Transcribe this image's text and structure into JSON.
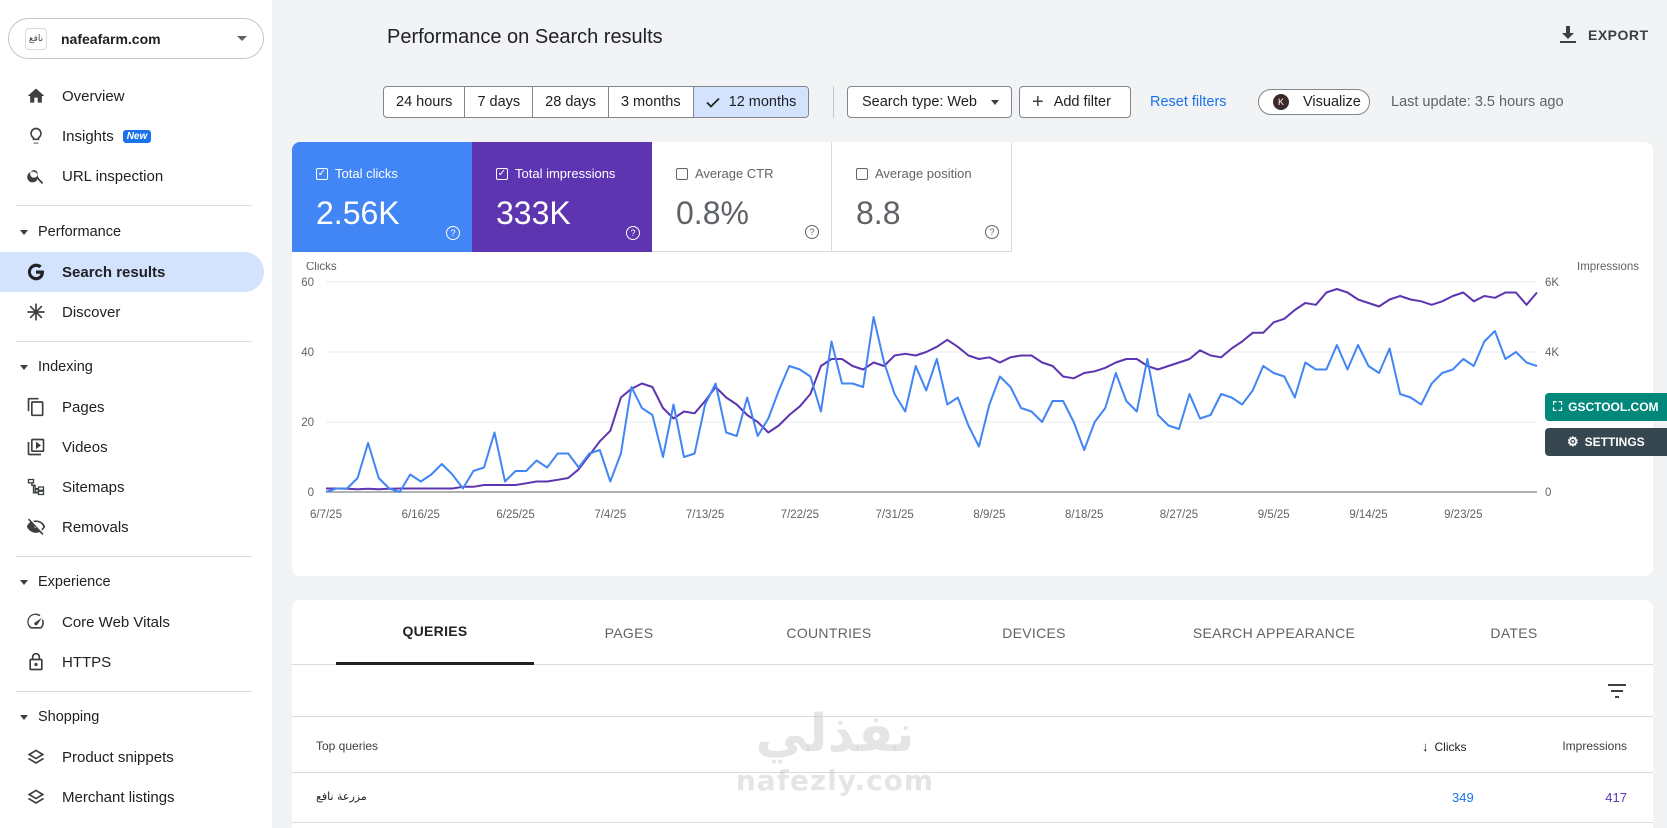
{
  "property": {
    "logo_text": "نافع",
    "name": "nafeafarm.com"
  },
  "sidebar": {
    "top_items": [
      {
        "label": "Overview",
        "icon": "home-icon"
      },
      {
        "label": "Insights",
        "icon": "lightbulb-icon",
        "badge": "New"
      },
      {
        "label": "URL inspection",
        "icon": "search-icon"
      }
    ],
    "sections": [
      {
        "title": "Performance",
        "items": [
          {
            "label": "Search results",
            "icon": "google-g-icon",
            "active": true
          },
          {
            "label": "Discover",
            "icon": "asterisk-icon"
          }
        ]
      },
      {
        "title": "Indexing",
        "items": [
          {
            "label": "Pages",
            "icon": "pages-icon"
          },
          {
            "label": "Videos",
            "icon": "video-icon"
          },
          {
            "label": "Sitemaps",
            "icon": "sitemap-icon"
          },
          {
            "label": "Removals",
            "icon": "eye-off-icon"
          }
        ]
      },
      {
        "title": "Experience",
        "items": [
          {
            "label": "Core Web Vitals",
            "icon": "gauge-icon"
          },
          {
            "label": "HTTPS",
            "icon": "lock-icon"
          }
        ]
      },
      {
        "title": "Shopping",
        "items": [
          {
            "label": "Product snippets",
            "icon": "layers-icon"
          },
          {
            "label": "Merchant listings",
            "icon": "layers-icon"
          }
        ]
      }
    ]
  },
  "header": {
    "title": "Performance on Search results",
    "export_label": "EXPORT"
  },
  "toolbar": {
    "ranges": [
      "24 hours",
      "7 days",
      "28 days",
      "3 months",
      "12 months"
    ],
    "selected_range": "12 months",
    "search_type": "Search type: Web",
    "add_filter": "Add filter",
    "reset": "Reset filters",
    "visualize": "Visualize",
    "visualize_logo": "K",
    "last_update": "Last update: 3.5 hours ago"
  },
  "metrics": {
    "clicks": {
      "label": "Total clicks",
      "value": "2.56K",
      "checked": true
    },
    "impressions": {
      "label": "Total impressions",
      "value": "333K",
      "checked": true
    },
    "ctr": {
      "label": "Average CTR",
      "value": "0.8%",
      "checked": false
    },
    "position": {
      "label": "Average position",
      "value": "8.8",
      "checked": false
    }
  },
  "floating": {
    "gsctool": "GSCTOOL.COM",
    "settings": "SETTINGS"
  },
  "chart_data": {
    "type": "line",
    "ylabel_left": "Clicks",
    "ylabel_right": "Impressions",
    "y_left_ticks": [
      "60",
      "40",
      "20",
      "0"
    ],
    "y_right_ticks": [
      "6K",
      "4K",
      "0"
    ],
    "ylim_left": [
      0,
      60
    ],
    "ylim_right": [
      0,
      6000
    ],
    "x_ticks": [
      "6/7/25",
      "6/16/25",
      "6/25/25",
      "7/4/25",
      "7/13/25",
      "7/22/25",
      "7/31/25",
      "8/9/25",
      "8/18/25",
      "8/27/25",
      "9/5/25",
      "9/14/25",
      "9/23/25"
    ],
    "series": [
      {
        "name": "Clicks",
        "color": "#4285f4",
        "axis": "left",
        "values": [
          0,
          1,
          1,
          4,
          14,
          4,
          1,
          0,
          5,
          3,
          5,
          8,
          5,
          1,
          6,
          7,
          17,
          3,
          6,
          6,
          9,
          7,
          11,
          11,
          7,
          11,
          12,
          3,
          11,
          30,
          24,
          22,
          10,
          25,
          10,
          11,
          25,
          31,
          17,
          16,
          27,
          16,
          21,
          29,
          36,
          35,
          33,
          23,
          43,
          31,
          31,
          30,
          50,
          37,
          28,
          23,
          36,
          29,
          38,
          25,
          27,
          19,
          13,
          25,
          33,
          30,
          24,
          23,
          20,
          26,
          26,
          20,
          12,
          20,
          24,
          34,
          26,
          23,
          38,
          22,
          19,
          18,
          28,
          21,
          22,
          28,
          27,
          25,
          29,
          36,
          34,
          33,
          27,
          37,
          35,
          35,
          42,
          35,
          42,
          36,
          34,
          41,
          28,
          27,
          25,
          31,
          34,
          35,
          38,
          36,
          43,
          46,
          38,
          40,
          37,
          36
        ]
      },
      {
        "name": "Impressions",
        "color": "#5e35b1",
        "axis": "right",
        "values": [
          100,
          100,
          90,
          80,
          90,
          80,
          90,
          100,
          100,
          100,
          100,
          100,
          100,
          150,
          150,
          200,
          200,
          200,
          200,
          250,
          300,
          300,
          350,
          400,
          650,
          1050,
          1450,
          1750,
          2700,
          2950,
          3100,
          3000,
          2400,
          2100,
          2300,
          2250,
          2600,
          3000,
          2700,
          2500,
          2200,
          2000,
          1700,
          1900,
          2200,
          2450,
          2800,
          3600,
          3800,
          3800,
          3600,
          3500,
          3700,
          3600,
          3900,
          3950,
          3900,
          4000,
          4150,
          4350,
          4150,
          3900,
          3800,
          3850,
          3700,
          3850,
          3900,
          3900,
          3700,
          3600,
          3300,
          3250,
          3400,
          3450,
          3550,
          3700,
          3800,
          3800,
          3600,
          3500,
          3600,
          3700,
          3800,
          4050,
          3900,
          3850,
          4100,
          4300,
          4550,
          4550,
          4850,
          4950,
          5200,
          5400,
          5350,
          5700,
          5800,
          5700,
          5500,
          5400,
          5300,
          5500,
          5600,
          5500,
          5450,
          5350,
          5450,
          5600,
          5700,
          5450,
          5600,
          5550,
          5700,
          5700,
          5350,
          5700
        ]
      }
    ]
  },
  "table": {
    "tabs": [
      "QUERIES",
      "PAGES",
      "COUNTRIES",
      "DEVICES",
      "SEARCH APPEARANCE",
      "DATES"
    ],
    "active_tab": "QUERIES",
    "headers": {
      "query": "Top queries",
      "clicks": "Clicks",
      "impressions": "Impressions"
    },
    "rows": [
      {
        "query": "مزرعة نافع",
        "clicks": "349",
        "impressions": "417"
      }
    ]
  },
  "watermark": {
    "arabic": "نفذلي",
    "latin": "nafezly.com"
  }
}
